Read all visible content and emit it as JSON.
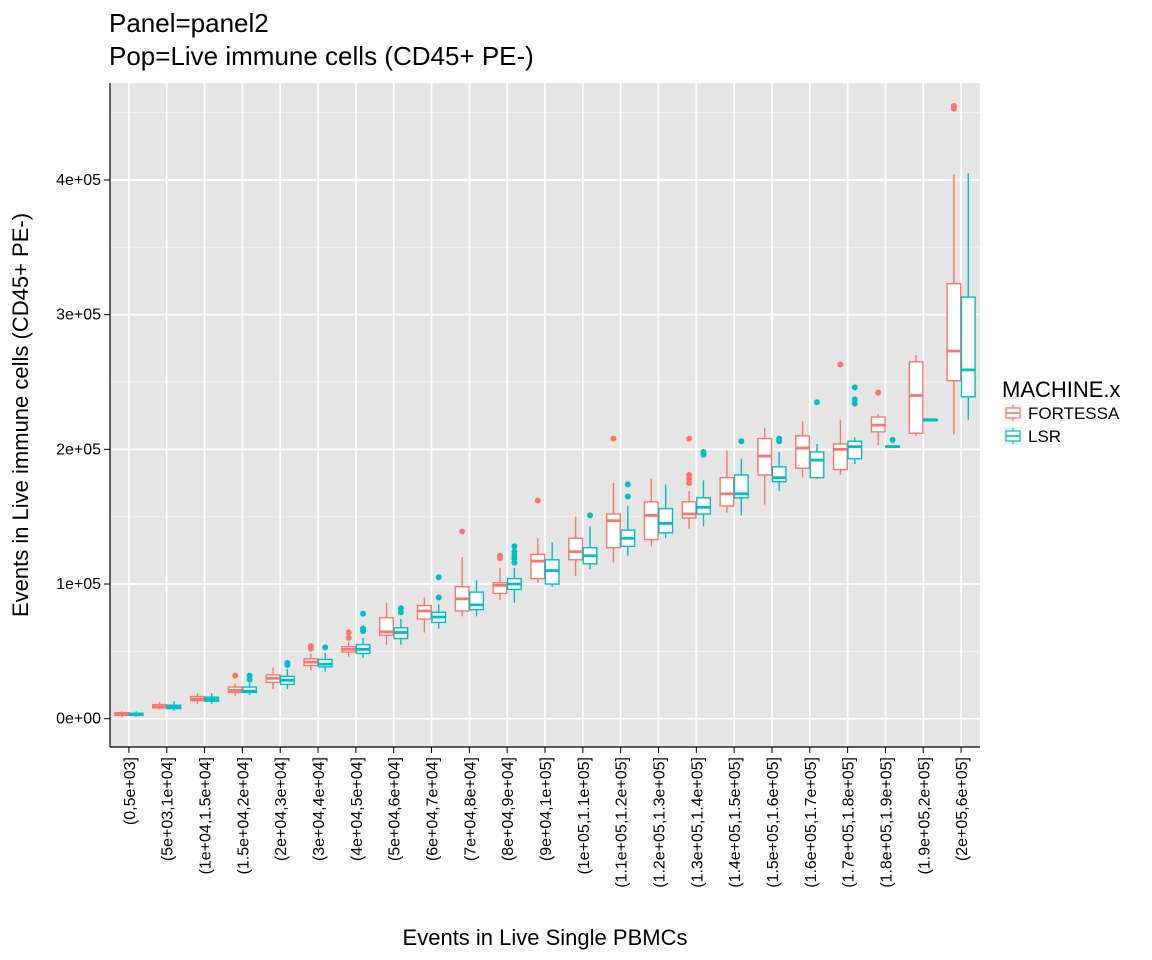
{
  "chart_data": {
    "type": "boxplot",
    "title": "Panel=panel2",
    "subtitle": "Pop=Live immune cells (CD45+ PE-)",
    "xlabel": "Events in Live Single PBMCs",
    "ylabel": "Events in Live immune cells (CD45+ PE-)",
    "ylim": [
      -21000,
      472000
    ],
    "yticks": [
      {
        "value": 0,
        "label": "0e+00"
      },
      {
        "value": 100000,
        "label": "1e+05"
      },
      {
        "value": 200000,
        "label": "2e+05"
      },
      {
        "value": 300000,
        "label": "3e+05"
      },
      {
        "value": 400000,
        "label": "4e+05"
      }
    ],
    "grid": true,
    "legend": {
      "title": "MACHINE.x",
      "position": "right",
      "entries": [
        "FORTESSA",
        "LSR"
      ]
    },
    "categories": [
      "(0,5e+03]",
      "(5e+03,1e+04]",
      "(1e+04,1.5e+04]",
      "(1.5e+04,2e+04]",
      "(2e+04,3e+04]",
      "(3e+04,4e+04]",
      "(4e+04,5e+04]",
      "(5e+04,6e+04]",
      "(6e+04,7e+04]",
      "(7e+04,8e+04]",
      "(8e+04,9e+04]",
      "(9e+04,1e+05]",
      "(1e+05,1.1e+05]",
      "(1.1e+05,1.2e+05]",
      "(1.2e+05,1.3e+05]",
      "(1.3e+05,1.4e+05]",
      "(1.4e+05,1.5e+05]",
      "(1.5e+05,1.6e+05]",
      "(1.6e+05,1.7e+05]",
      "(1.7e+05,1.8e+05]",
      "(1.8e+05,1.9e+05]",
      "(1.9e+05,2e+05]",
      "(2e+05,6e+05]"
    ],
    "series": [
      {
        "name": "FORTESSA",
        "color": "#f8766d",
        "boxes": [
          {
            "min": 1000,
            "q1": 2500,
            "median": 3500,
            "q3": 4500,
            "max": 5500,
            "outliers": []
          },
          {
            "min": 7000,
            "q1": 8000,
            "median": 9000,
            "q3": 10500,
            "max": 12500,
            "outliers": []
          },
          {
            "min": 11000,
            "q1": 13500,
            "median": 14500,
            "q3": 16500,
            "max": 19000,
            "outliers": []
          },
          {
            "min": 17000,
            "q1": 19500,
            "median": 21000,
            "q3": 23500,
            "max": 26000,
            "outliers": [
              32000
            ]
          },
          {
            "min": 22000,
            "q1": 27000,
            "median": 30000,
            "q3": 32500,
            "max": 38000,
            "outliers": []
          },
          {
            "min": 36000,
            "q1": 39500,
            "median": 42000,
            "q3": 44500,
            "max": 48000,
            "outliers": [
              52000,
              54000
            ]
          },
          {
            "min": 46000,
            "q1": 49500,
            "median": 51500,
            "q3": 53500,
            "max": 57000,
            "outliers": [
              60000,
              64000
            ]
          },
          {
            "min": 55000,
            "q1": 62000,
            "median": 64500,
            "q3": 75000,
            "max": 86000,
            "outliers": []
          },
          {
            "min": 64000,
            "q1": 74000,
            "median": 80000,
            "q3": 84000,
            "max": 90000,
            "outliers": []
          },
          {
            "min": 76000,
            "q1": 80000,
            "median": 89000,
            "q3": 98000,
            "max": 120000,
            "outliers": [
              139000
            ]
          },
          {
            "min": 88000,
            "q1": 93000,
            "median": 99000,
            "q3": 101000,
            "max": 112000,
            "outliers": [
              119000,
              121000
            ]
          },
          {
            "min": 101000,
            "q1": 104000,
            "median": 117000,
            "q3": 122000,
            "max": 134000,
            "outliers": [
              162000
            ]
          },
          {
            "min": 106000,
            "q1": 118000,
            "median": 124000,
            "q3": 134000,
            "max": 150000,
            "outliers": []
          },
          {
            "min": 116000,
            "q1": 127000,
            "median": 147000,
            "q3": 152000,
            "max": 175000,
            "outliers": [
              208000
            ]
          },
          {
            "min": 128000,
            "q1": 133000,
            "median": 151000,
            "q3": 161000,
            "max": 178000,
            "outliers": []
          },
          {
            "min": 141000,
            "q1": 149000,
            "median": 152000,
            "q3": 161000,
            "max": 169000,
            "outliers": [
              175000,
              178000,
              181000,
              208000
            ]
          },
          {
            "min": 153000,
            "q1": 158000,
            "median": 167000,
            "q3": 179000,
            "max": 199000,
            "outliers": []
          },
          {
            "min": 159000,
            "q1": 181000,
            "median": 195000,
            "q3": 208000,
            "max": 216000,
            "outliers": []
          },
          {
            "min": 179000,
            "q1": 186000,
            "median": 201000,
            "q3": 210000,
            "max": 221000,
            "outliers": []
          },
          {
            "min": 181000,
            "q1": 185000,
            "median": 200000,
            "q3": 204000,
            "max": 222000,
            "outliers": [
              263000
            ]
          },
          {
            "min": 203000,
            "q1": 213000,
            "median": 218000,
            "q3": 224000,
            "max": 226000,
            "outliers": [
              242000
            ]
          },
          {
            "min": 210000,
            "q1": 212000,
            "median": 240000,
            "q3": 265000,
            "max": 270000,
            "outliers": []
          },
          {
            "min": 211000,
            "q1": 251000,
            "median": 273000,
            "q3": 323000,
            "max": 404000,
            "outliers": [
              453000,
              455000
            ]
          }
        ]
      },
      {
        "name": "LSR",
        "color": "#00bfc4",
        "boxes": [
          {
            "min": 1500,
            "q1": 2500,
            "median": 3500,
            "q3": 4000,
            "max": 5500,
            "outliers": []
          },
          {
            "min": 6000,
            "q1": 7500,
            "median": 9000,
            "q3": 10000,
            "max": 13000,
            "outliers": []
          },
          {
            "min": 11000,
            "q1": 13000,
            "median": 14500,
            "q3": 16000,
            "max": 19000,
            "outliers": []
          },
          {
            "min": 17500,
            "q1": 19500,
            "median": 20500,
            "q3": 23500,
            "max": 26500,
            "outliers": [
              29000,
              32000
            ]
          },
          {
            "min": 22000,
            "q1": 25500,
            "median": 28500,
            "q3": 31500,
            "max": 37000,
            "outliers": [
              40000,
              41500
            ]
          },
          {
            "min": 35000,
            "q1": 38500,
            "median": 40500,
            "q3": 44000,
            "max": 49000,
            "outliers": [
              53000
            ]
          },
          {
            "min": 45000,
            "q1": 48500,
            "median": 51500,
            "q3": 55000,
            "max": 60000,
            "outliers": [
              65000,
              67000,
              78000
            ]
          },
          {
            "min": 55000,
            "q1": 59500,
            "median": 64000,
            "q3": 67500,
            "max": 74000,
            "outliers": [
              79000,
              82000
            ]
          },
          {
            "min": 67000,
            "q1": 71500,
            "median": 75500,
            "q3": 79000,
            "max": 85000,
            "outliers": [
              90000,
              105000
            ]
          },
          {
            "min": 76000,
            "q1": 81000,
            "median": 84500,
            "q3": 94000,
            "max": 103000,
            "outliers": []
          },
          {
            "min": 86000,
            "q1": 96000,
            "median": 100000,
            "q3": 104000,
            "max": 112000,
            "outliers": [
              116000,
              119000,
              121000,
              124000,
              128000
            ]
          },
          {
            "min": 98000,
            "q1": 100000,
            "median": 110000,
            "q3": 118000,
            "max": 131000,
            "outliers": []
          },
          {
            "min": 111000,
            "q1": 115000,
            "median": 121000,
            "q3": 127000,
            "max": 143000,
            "outliers": [
              151000
            ]
          },
          {
            "min": 121000,
            "q1": 128000,
            "median": 134000,
            "q3": 140000,
            "max": 158000,
            "outliers": [
              165000,
              174000
            ]
          },
          {
            "min": 134000,
            "q1": 138000,
            "median": 145000,
            "q3": 156000,
            "max": 174000,
            "outliers": []
          },
          {
            "min": 143000,
            "q1": 152000,
            "median": 157000,
            "q3": 164000,
            "max": 177000,
            "outliers": [
              196000,
              198000
            ]
          },
          {
            "min": 151000,
            "q1": 164000,
            "median": 167000,
            "q3": 181000,
            "max": 193000,
            "outliers": [
              206000
            ]
          },
          {
            "min": 169000,
            "q1": 176000,
            "median": 179000,
            "q3": 187000,
            "max": 198000,
            "outliers": [
              206000,
              208000
            ]
          },
          {
            "min": 178000,
            "q1": 179000,
            "median": 192000,
            "q3": 198000,
            "max": 204000,
            "outliers": [
              235000
            ]
          },
          {
            "min": 189000,
            "q1": 193000,
            "median": 202000,
            "q3": 206000,
            "max": 209000,
            "outliers": [
              234000,
              237000,
              246000
            ]
          },
          {
            "min": 201000,
            "q1": 201500,
            "median": 202000,
            "q3": 202500,
            "max": 203000,
            "outliers": [
              207000
            ]
          },
          {
            "min": 222000,
            "q1": 222000,
            "median": 222000,
            "q3": 222000,
            "max": 222000,
            "outliers": []
          },
          {
            "min": 222000,
            "q1": 239000,
            "median": 259000,
            "q3": 313000,
            "max": 405000,
            "outliers": []
          }
        ]
      }
    ]
  }
}
